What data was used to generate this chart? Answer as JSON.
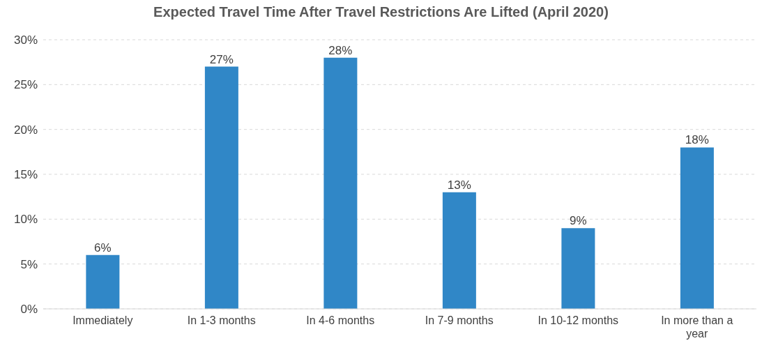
{
  "chart_data": {
    "type": "bar",
    "title": "Expected Travel Time After Travel Restrictions Are Lifted (April 2020)",
    "categories": [
      "Immediately",
      "In 1-3 months",
      "In 4-6 months",
      "In 7-9 months",
      "In 10-12 months",
      "In more than a year"
    ],
    "values": [
      6,
      27,
      28,
      13,
      9,
      18
    ],
    "value_labels": [
      "6%",
      "27%",
      "28%",
      "13%",
      "9%",
      "18%"
    ],
    "color": "#3087c7",
    "ylim": [
      0,
      30
    ],
    "yticks": [
      {
        "value": 0,
        "label": "0%"
      },
      {
        "value": 5,
        "label": "5%"
      },
      {
        "value": 10,
        "label": "10%"
      },
      {
        "value": 15,
        "label": "15%"
      },
      {
        "value": 20,
        "label": "20%"
      },
      {
        "value": 25,
        "label": "25%"
      },
      {
        "value": 30,
        "label": "30%"
      }
    ],
    "grid": "y"
  }
}
